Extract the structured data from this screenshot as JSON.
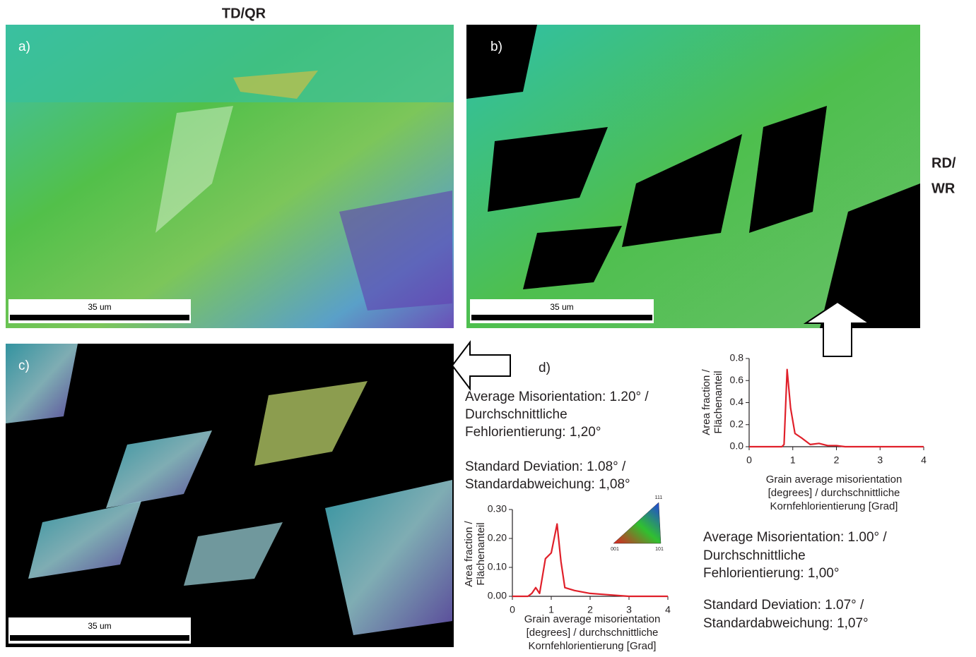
{
  "header": {
    "top_axis": "TD/QR",
    "side_axis": [
      "RD/",
      "WR"
    ]
  },
  "panels": [
    {
      "label": "a)",
      "scale_bar": "35 um"
    },
    {
      "label": "b)",
      "scale_bar": "35 um"
    },
    {
      "label": "c)",
      "scale_bar": "35 um"
    }
  ],
  "panel_d": {
    "label": "d)",
    "stats_c": [
      "Average Misorientation: 1.20° /",
      "Durchschnittliche",
      "Fehlorientierung: 1,20°",
      "Standard Deviation: 1.08° /",
      "Standardabweichung: 1,08°"
    ],
    "stats_b": [
      "Average Misorientation: 1.00° /",
      "Durchschnittliche",
      "Fehlorientierung: 1,00°",
      "Standard Deviation: 1.07° /",
      "Standardabweichung: 1,07°"
    ],
    "ipf_legend": [
      "111",
      "001",
      "101"
    ]
  },
  "chart_data": [
    {
      "type": "line",
      "x": [
        0,
        0.5,
        0.75,
        0.8,
        0.87,
        0.95,
        1.05,
        1.2,
        1.4,
        1.6,
        1.8,
        2.0,
        2.2,
        2.5,
        3,
        3.5,
        4
      ],
      "values": [
        0,
        0,
        0,
        0.02,
        0.7,
        0.35,
        0.12,
        0.08,
        0.02,
        0.03,
        0.01,
        0.01,
        0,
        0,
        0,
        0,
        0
      ],
      "color": "#e0202a",
      "xlim": [
        0,
        4
      ],
      "xticks": [
        0,
        1,
        2,
        3,
        4
      ],
      "ylim": [
        0,
        0.8
      ],
      "yticks": [
        {
          "value": 0,
          "label": "0.0"
        },
        {
          "value": 0.2,
          "label": "0.2"
        },
        {
          "value": 0.4,
          "label": "0.4"
        },
        {
          "value": 0.6,
          "label": "0.6"
        },
        {
          "value": 0.8,
          "label": "0.8"
        }
      ],
      "ylabel": [
        "Area fraction /",
        "Flächenanteil"
      ],
      "xlabel": [
        "Grain average misorientation",
        "[degrees] / durchschnittliche",
        "Kornfehlorientierung [Grad]"
      ]
    },
    {
      "type": "line",
      "x": [
        0,
        0.4,
        0.5,
        0.6,
        0.7,
        0.85,
        1.0,
        1.15,
        1.25,
        1.35,
        1.6,
        2.0,
        2.5,
        3,
        4
      ],
      "values": [
        0,
        0,
        0.01,
        0.03,
        0.01,
        0.13,
        0.15,
        0.25,
        0.12,
        0.03,
        0.02,
        0.01,
        0.005,
        0,
        0
      ],
      "color": "#e0202a",
      "xlim": [
        0,
        4
      ],
      "xticks": [
        0,
        1,
        2,
        3,
        4
      ],
      "ylim": [
        0,
        0.3
      ],
      "yticks": [
        {
          "value": 0,
          "label": "0.00"
        },
        {
          "value": 0.1,
          "label": "0.10"
        },
        {
          "value": 0.2,
          "label": "0.20"
        },
        {
          "value": 0.3,
          "label": "0.30"
        }
      ],
      "ylabel": [
        "Area fraction /",
        "Flächenanteil"
      ],
      "xlabel": [
        "Grain average misorientation",
        "[degrees] / durchschnittliche",
        "Kornfehlorientierung [Grad]"
      ]
    }
  ]
}
